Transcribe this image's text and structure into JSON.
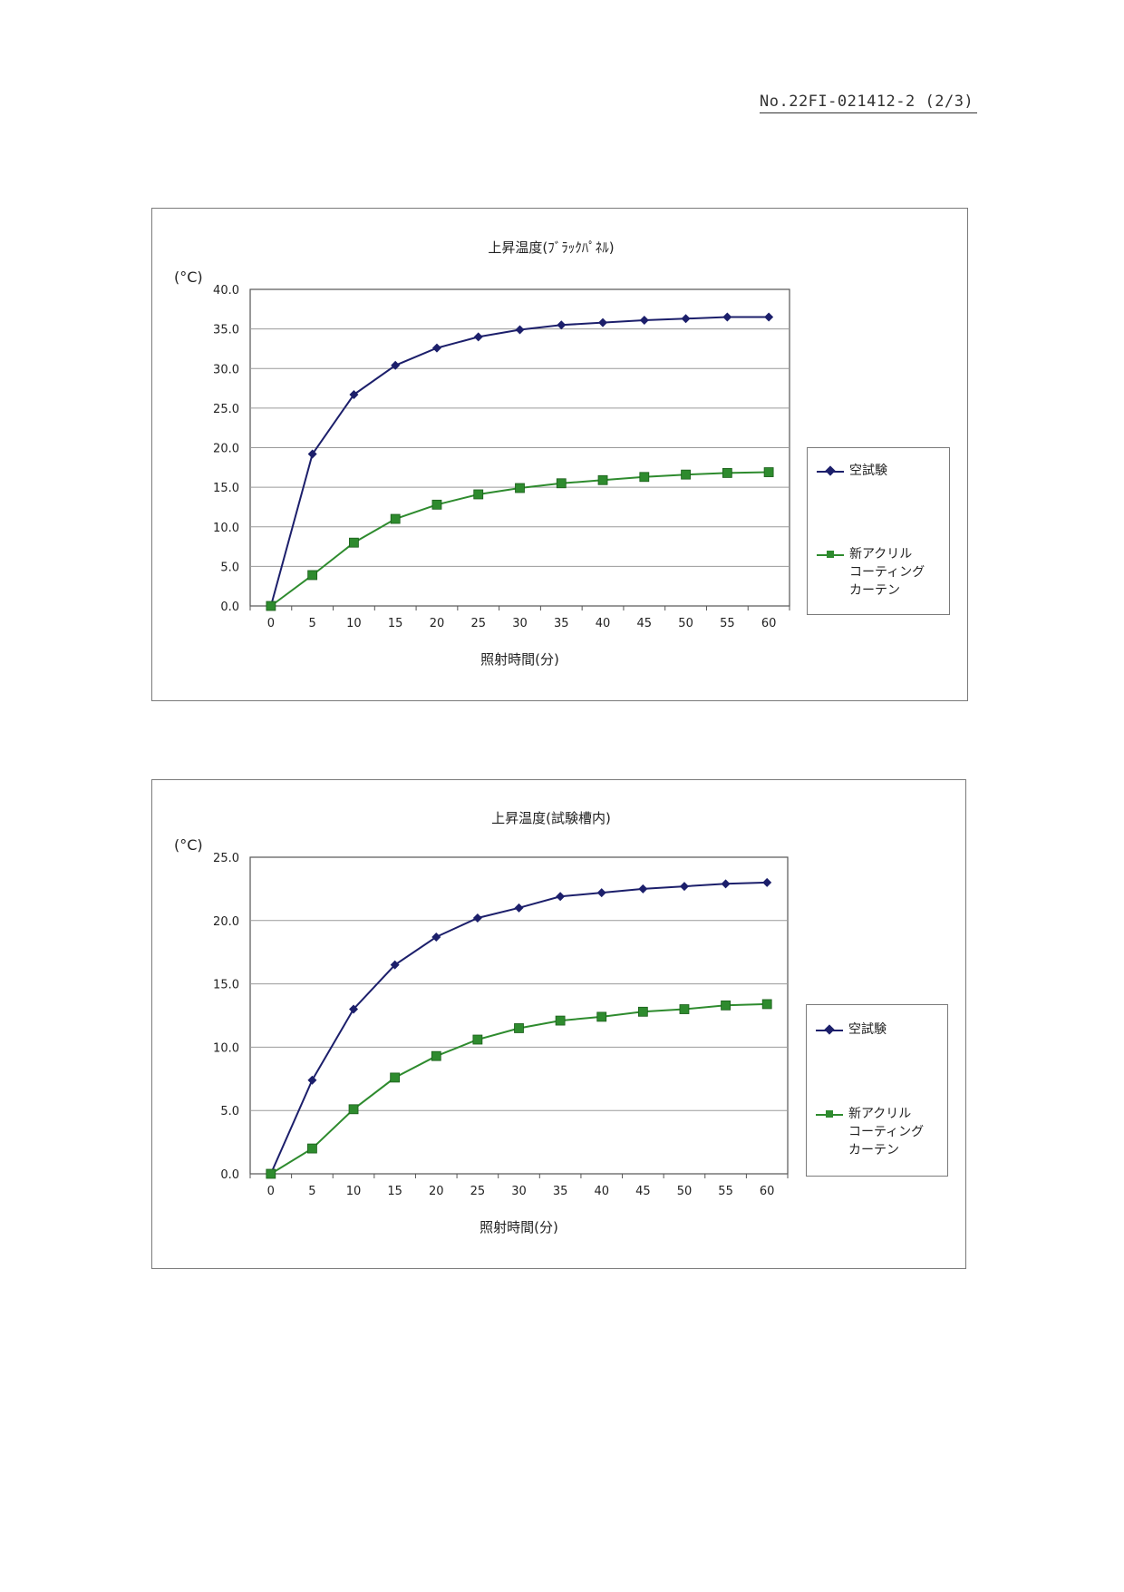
{
  "header": {
    "doc_number": "No.22FI-021412-2 (2/3)"
  },
  "colors": {
    "series_blank": "#1c1f6b",
    "series_coating": "#2e8b2e",
    "gridline": "#9a9a9a",
    "frame": "#7a7a7a"
  },
  "chart_data": [
    {
      "type": "line",
      "title": "上昇温度(ﾌﾞﾗｯｸﾊﾟﾈﾙ)",
      "xlabel": "照射時間(分)",
      "ylabel": "(°C)",
      "categories": [
        "0",
        "5",
        "10",
        "15",
        "20",
        "25",
        "30",
        "35",
        "40",
        "45",
        "50",
        "55",
        "60"
      ],
      "ylim": [
        0,
        40
      ],
      "yticks": [
        "0.0",
        "5.0",
        "10.0",
        "15.0",
        "20.0",
        "25.0",
        "30.0",
        "35.0",
        "40.0"
      ],
      "grid": true,
      "legend_position": "right",
      "series": [
        {
          "name": "空試験",
          "marker": "diamond",
          "color": "#1c1f6b",
          "values": [
            0.0,
            19.2,
            26.7,
            30.4,
            32.6,
            34.0,
            34.9,
            35.5,
            35.8,
            36.1,
            36.3,
            36.5,
            36.5
          ]
        },
        {
          "name": "新アクリル\nコーティング\nカーテン",
          "marker": "square",
          "color": "#2e8b2e",
          "values": [
            0.0,
            3.9,
            8.0,
            11.0,
            12.8,
            14.1,
            14.9,
            15.5,
            15.9,
            16.3,
            16.6,
            16.8,
            16.9
          ]
        }
      ]
    },
    {
      "type": "line",
      "title": "上昇温度(試験槽内)",
      "xlabel": "照射時間(分)",
      "ylabel": "(°C)",
      "categories": [
        "0",
        "5",
        "10",
        "15",
        "20",
        "25",
        "30",
        "35",
        "40",
        "45",
        "50",
        "55",
        "60"
      ],
      "ylim": [
        0,
        25
      ],
      "yticks": [
        "0.0",
        "5.0",
        "10.0",
        "15.0",
        "20.0",
        "25.0"
      ],
      "grid": true,
      "legend_position": "right",
      "series": [
        {
          "name": "空試験",
          "marker": "diamond",
          "color": "#1c1f6b",
          "values": [
            0.0,
            7.4,
            13.0,
            16.5,
            18.7,
            20.2,
            21.0,
            21.9,
            22.2,
            22.5,
            22.7,
            22.9,
            23.0
          ]
        },
        {
          "name": "新アクリル\nコーティング\nカーテン",
          "marker": "square",
          "color": "#2e8b2e",
          "values": [
            0.0,
            2.0,
            5.1,
            7.6,
            9.3,
            10.6,
            11.5,
            12.1,
            12.4,
            12.8,
            13.0,
            13.3,
            13.4
          ]
        }
      ]
    }
  ]
}
